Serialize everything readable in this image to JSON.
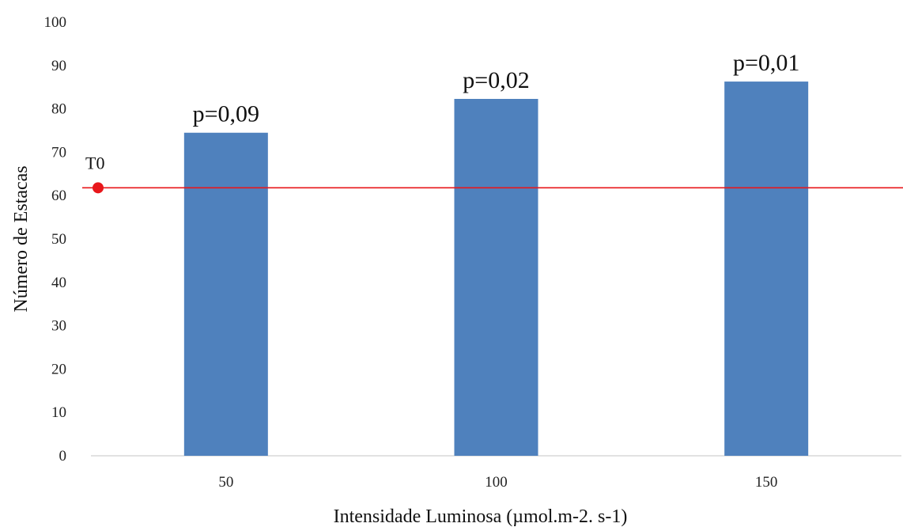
{
  "chart_data": {
    "type": "bar",
    "title": "",
    "xlabel": "Intensidade Luminosa (µmol.m-2. s-1)",
    "ylabel": "Número de Estacas",
    "categories": [
      "50",
      "100",
      "150"
    ],
    "values": [
      74.5,
      82.3,
      86.3
    ],
    "data_labels": [
      "p=0,09",
      "p=0,02",
      "p=0,01"
    ],
    "ylim": [
      0,
      100
    ],
    "yticks": [
      0,
      10,
      20,
      30,
      40,
      50,
      60,
      70,
      80,
      90,
      100
    ],
    "grid": false,
    "legend": "none",
    "bar_color": "#4F81BD",
    "reference_line": {
      "label": "T0",
      "value": 61.8,
      "color": "#E8171B"
    }
  }
}
